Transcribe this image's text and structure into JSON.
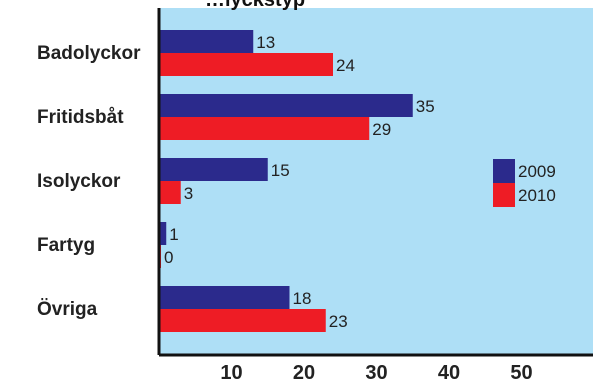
{
  "chart_data": {
    "type": "bar",
    "orientation": "horizontal",
    "title": "…lyckstyp",
    "categories": [
      "Badolyckor",
      "Fritidsbåt",
      "Isolyckor",
      "Fartyg",
      "Övriga"
    ],
    "series": [
      {
        "name": "2009",
        "values": [
          13,
          35,
          15,
          1,
          18
        ],
        "color": "#2b2a8c"
      },
      {
        "name": "2010",
        "values": [
          24,
          29,
          3,
          0,
          23
        ],
        "color": "#ee1c25"
      }
    ],
    "xlim": [
      0,
      58
    ],
    "xticks": [
      10,
      20,
      30,
      40,
      50
    ],
    "grid": false,
    "legend_position": "right",
    "plot_background": "#aedff6"
  }
}
